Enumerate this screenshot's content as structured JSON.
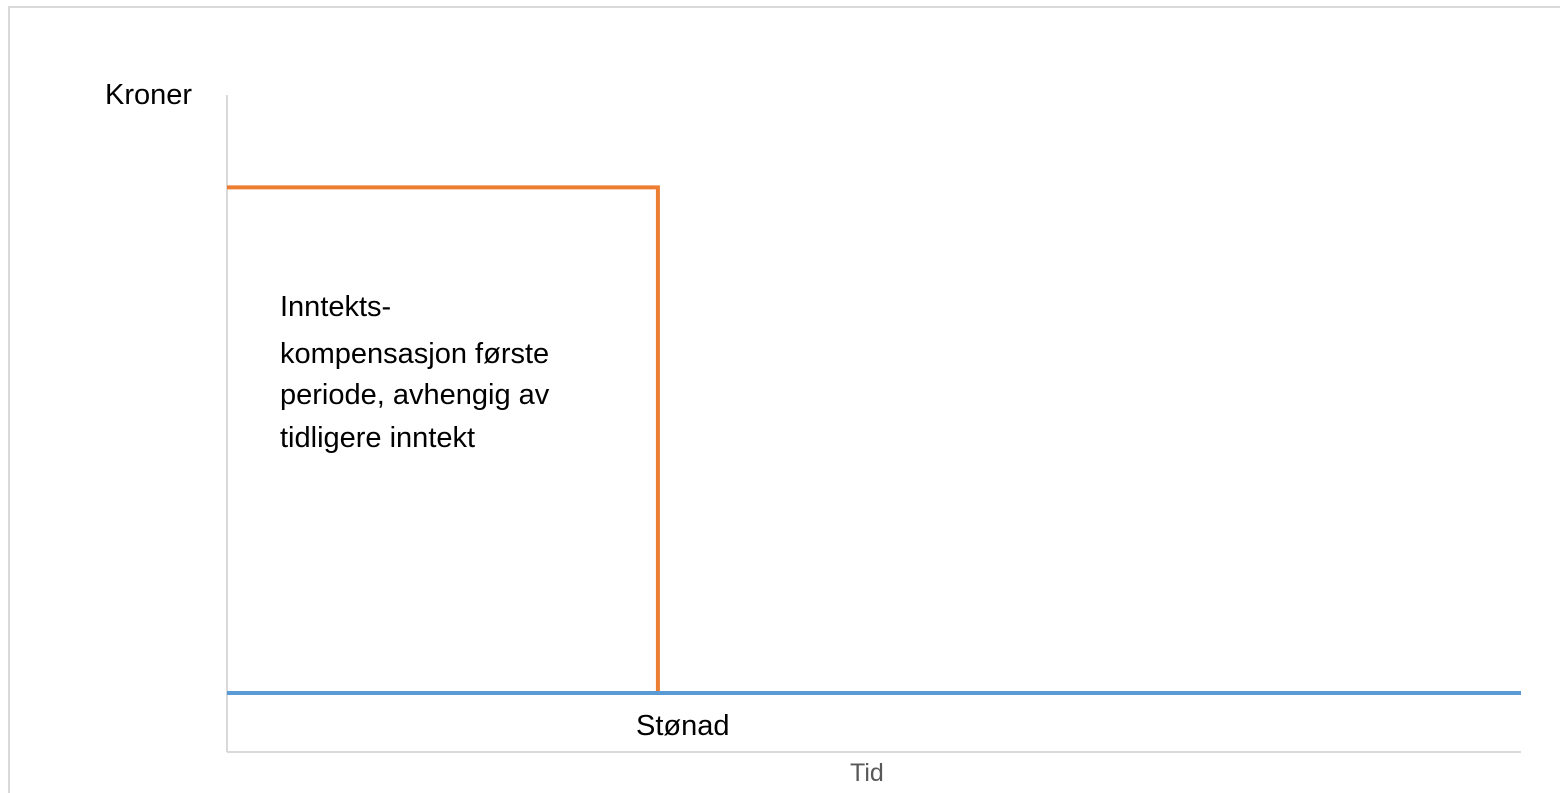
{
  "chart_data": {
    "type": "line",
    "xlabel": "Tid",
    "ylabel": "Kroner",
    "grid": false,
    "legend": "none",
    "series": [
      {
        "color": "#ed7d31",
        "points": [
          [
            0,
            0.8
          ],
          [
            0.333,
            0.8
          ],
          [
            0.333,
            0
          ]
        ]
      },
      {
        "color": "#5b9bd5",
        "points": [
          [
            0,
            0
          ],
          [
            1,
            0
          ]
        ]
      }
    ],
    "annotations": [
      {
        "lines": [
          "Inntekts-",
          "kompensasjon første",
          "periode, avhengig av",
          "tidligere inntekt"
        ]
      },
      {
        "lines": [
          "Stønad"
        ]
      }
    ],
    "axis_color": "#d9d9d9"
  }
}
